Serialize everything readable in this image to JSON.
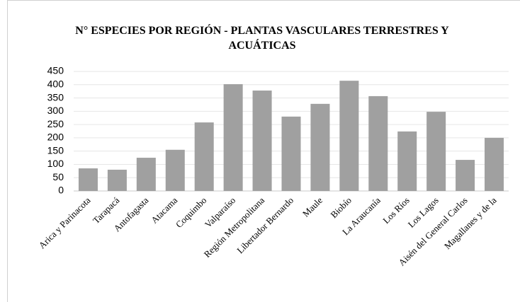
{
  "chart_data": {
    "type": "bar",
    "title": "N° ESPECIES POR REGIÓN - PLANTAS VASCULARES TERRESTRES Y ACUÁTICAS",
    "categories": [
      "Arica y Parinacota",
      "Tarapacá",
      "Antofagasta",
      "Atacama",
      "Coquimbo",
      "Valparaíso",
      "Región Metropolitana",
      "Libertador Bernardo",
      "Maule",
      "Biobío",
      "La Araucanía",
      "Los Ríos",
      "Los Lagos",
      "Aisén del General Carlos",
      "Magallanes y de la"
    ],
    "values": [
      85,
      80,
      125,
      155,
      258,
      402,
      378,
      280,
      328,
      415,
      357,
      224,
      298,
      117,
      200
    ],
    "color": "#a0a0a0",
    "ylim": [
      0,
      450
    ],
    "yticks": [
      0,
      50,
      100,
      150,
      200,
      250,
      300,
      350,
      400,
      450
    ],
    "grid": true
  }
}
